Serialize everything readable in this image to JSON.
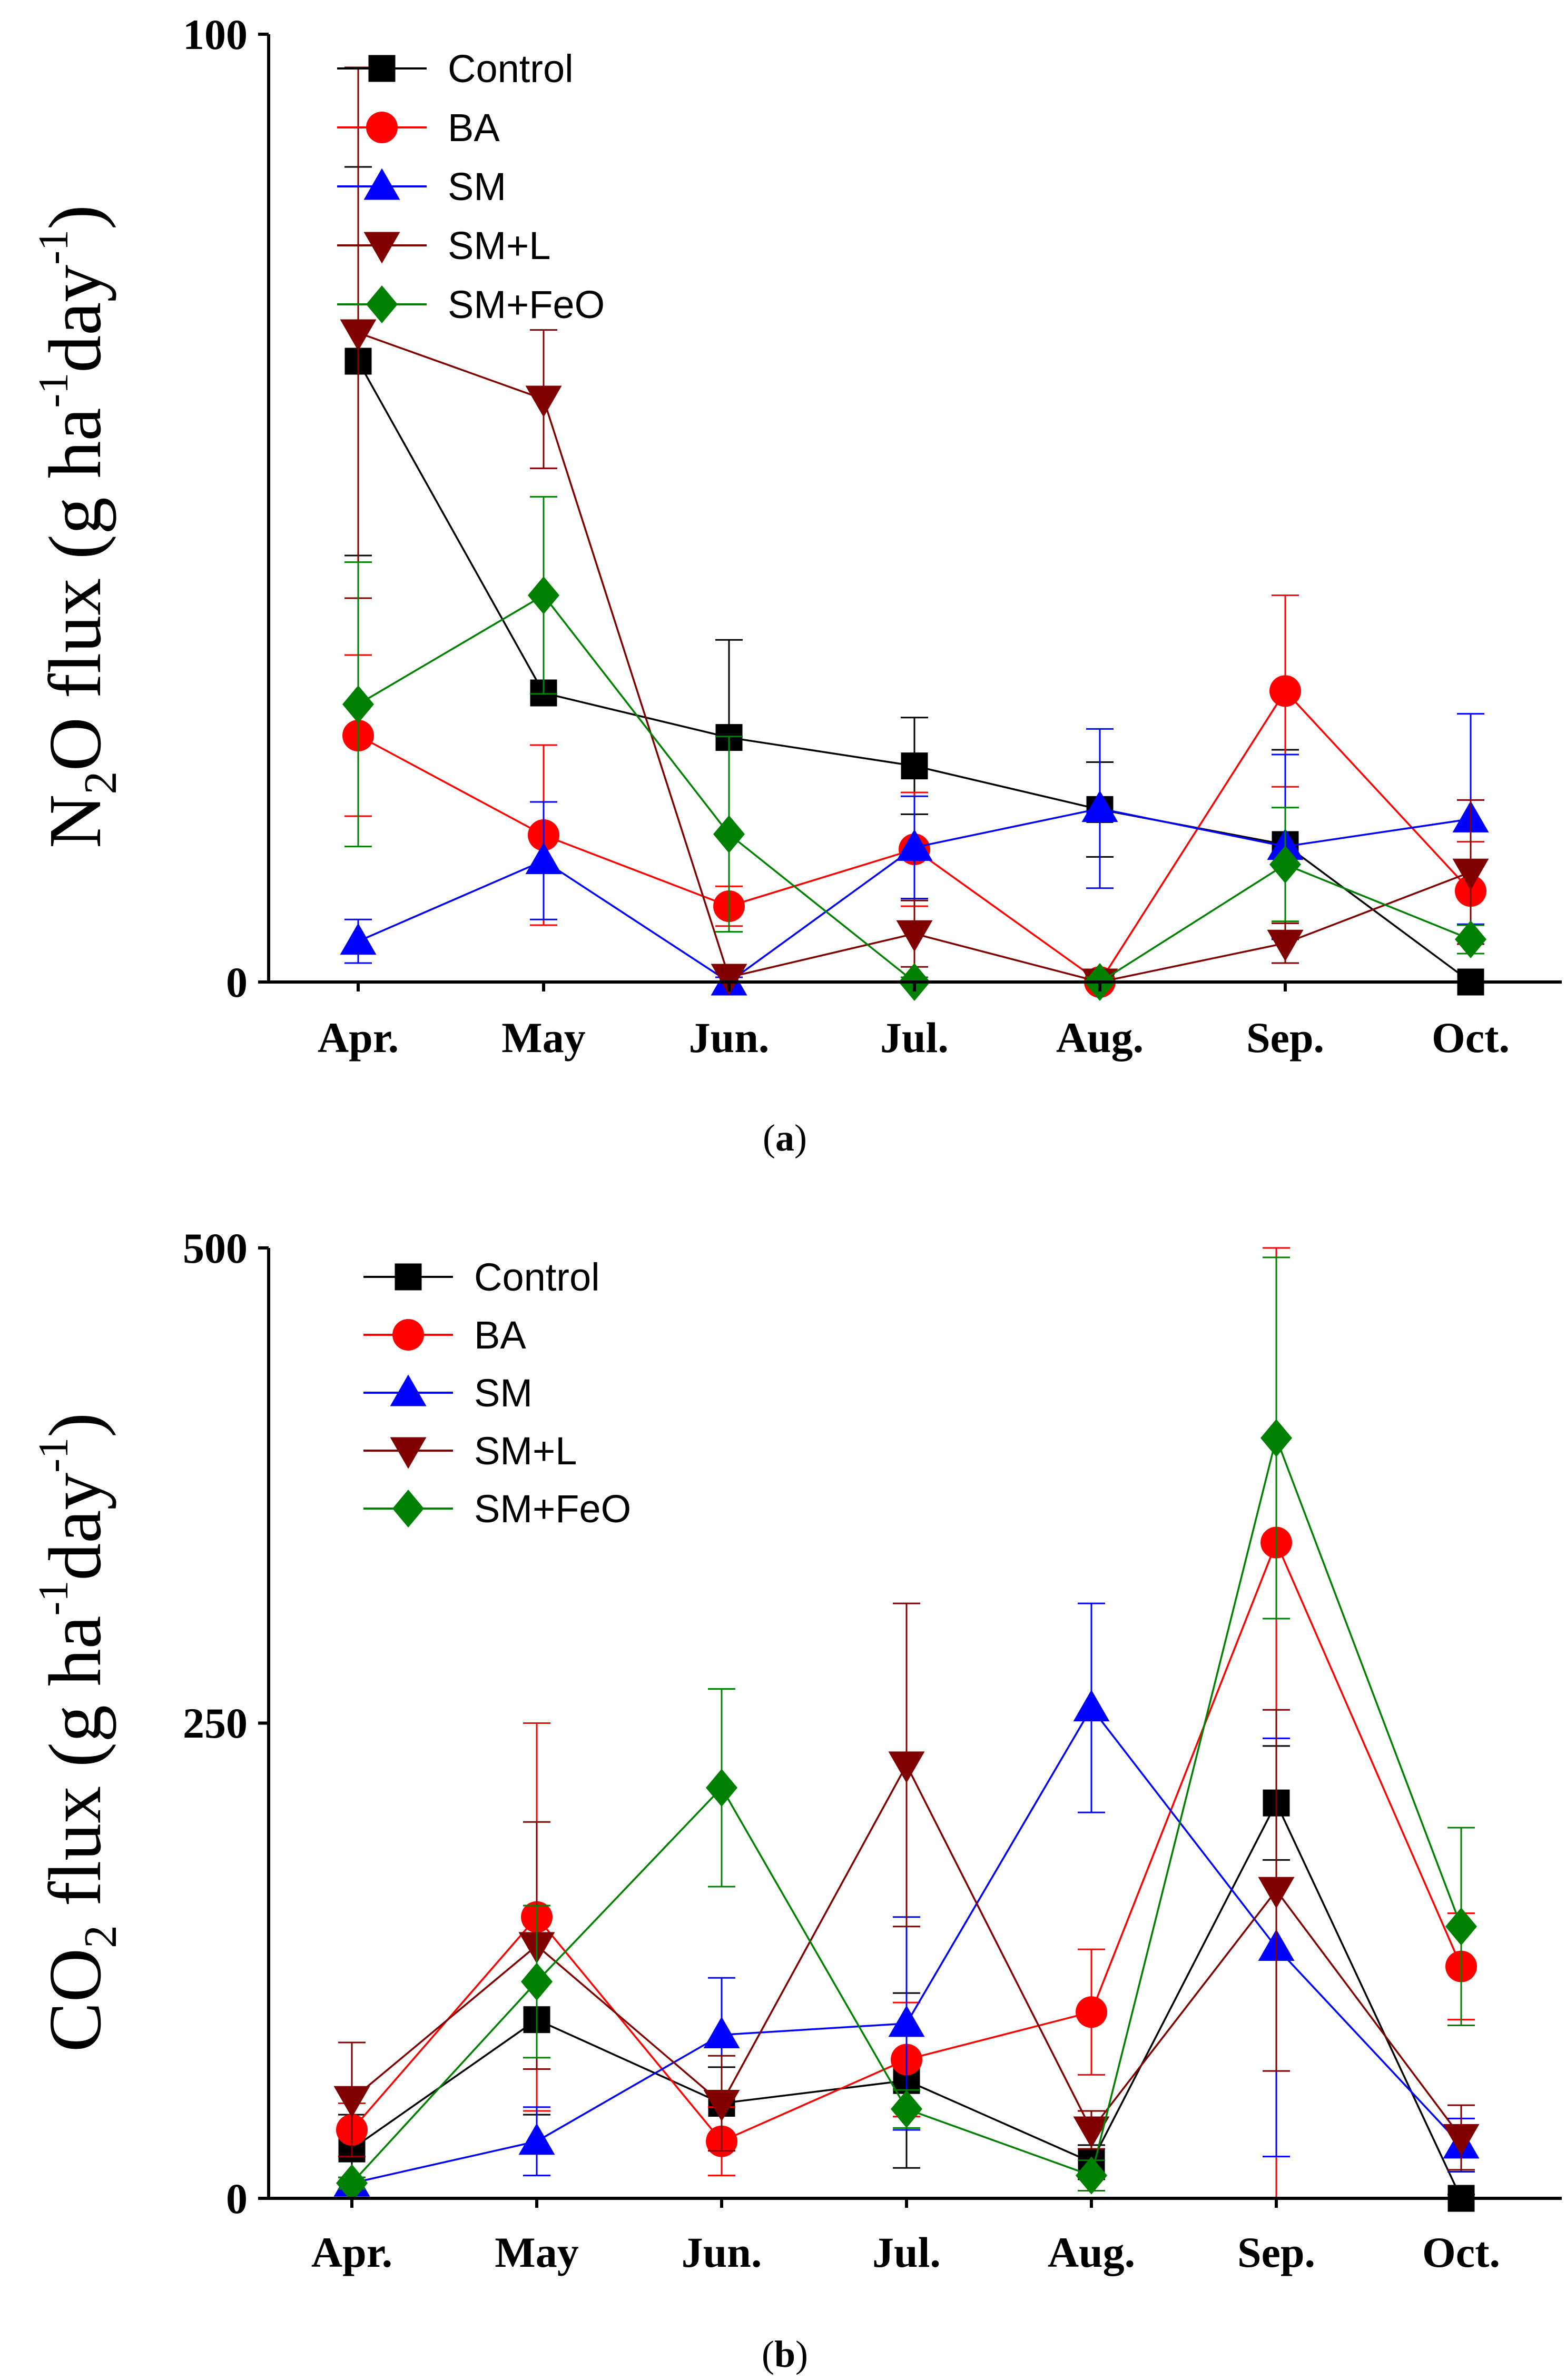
{
  "chart_data": [
    {
      "type": "line",
      "panel_label": {
        "open": "(",
        "letter": "a",
        "close": ")"
      },
      "ylabel": {
        "base": "N",
        "sub": "2",
        "mid": "O flux (g ha",
        "sup1": "-1",
        "mid2": "day",
        "sup2": "-1",
        "end": ")"
      },
      "categories": [
        "Apr.",
        "May",
        "Jun.",
        "Jul.",
        "Aug.",
        "Sep.",
        "Oct."
      ],
      "ylim": [
        0,
        100
      ],
      "yticks": [
        "0",
        "100"
      ],
      "legend_position": "top-left",
      "series": [
        {
          "name": "Control",
          "color": "#000000",
          "marker": "square",
          "values": [
            65.5,
            30.5,
            25.8,
            22.8,
            18.2,
            14.5,
            0
          ],
          "errors": [
            20.5,
            null,
            10.3,
            5.1,
            5.0,
            10.0,
            null
          ]
        },
        {
          "name": "BA",
          "color": "#ff0000",
          "marker": "circle",
          "values": [
            26,
            15.5,
            8,
            14,
            0,
            30.7,
            9.6
          ],
          "errors": [
            8.5,
            9.5,
            2.1,
            6.0,
            0.5,
            10.1,
            5.2
          ]
        },
        {
          "name": "SM",
          "color": "#0000ff",
          "marker": "triangle-up",
          "values": [
            4.3,
            12.8,
            0,
            14.2,
            18.3,
            14.3,
            17.2
          ],
          "errors": [
            2.3,
            6.2,
            0.5,
            5.4,
            8.4,
            9.7,
            11.1
          ]
        },
        {
          "name": "SM+L",
          "color": "#800000",
          "marker": "triangle-down",
          "values": [
            68.5,
            61.5,
            0.5,
            5.1,
            0,
            4.1,
            11.6
          ],
          "errors": [
            28.0,
            7.3,
            0.5,
            3.5,
            0.5,
            2.1,
            7.6
          ]
        },
        {
          "name": "SM+FeO",
          "color": "#008000",
          "marker": "diamond",
          "values": [
            29.3,
            40.8,
            15.6,
            0,
            0,
            12.4,
            4.5
          ],
          "errors": [
            15.0,
            10.4,
            10.3,
            0.5,
            0.5,
            6.0,
            1.5
          ]
        }
      ]
    },
    {
      "type": "line",
      "panel_label": {
        "open": "(",
        "letter": "b",
        "close": ")"
      },
      "ylabel": {
        "base": "CO",
        "sub": "2",
        "mid": " flux (g ha",
        "sup1": "-1",
        "mid2": "day",
        "sup2": "-1",
        "end": ")"
      },
      "categories": [
        "Apr.",
        "May",
        "Jun.",
        "Jul.",
        "Aug.",
        "Sep.",
        "Oct."
      ],
      "ylim": [
        0,
        500
      ],
      "yticks": [
        "0",
        "250",
        "500"
      ],
      "legend_position": "top-left",
      "series": [
        {
          "name": "Control",
          "color": "#000000",
          "marker": "square",
          "values": [
            26,
            94,
            50,
            62,
            19,
            208,
            0
          ],
          "errors": [
            18,
            50,
            19,
            46,
            9,
            30,
            2
          ]
        },
        {
          "name": "BA",
          "color": "#ff0000",
          "marker": "circle",
          "values": [
            36,
            148,
            30,
            73,
            98,
            345,
            122
          ],
          "errors": [
            14,
            102,
            18,
            30,
            33,
            350,
            28
          ]
        },
        {
          "name": "SM",
          "color": "#0000ff",
          "marker": "triangle-up",
          "values": [
            8,
            30,
            86,
            92,
            258,
            132,
            28
          ],
          "errors": [
            3,
            18,
            30,
            56,
            55,
            110,
            14
          ]
        },
        {
          "name": "SM+L",
          "color": "#800000",
          "marker": "triangle-down",
          "values": [
            52,
            133,
            50,
            228,
            36,
            162,
            32
          ],
          "errors": [
            30,
            65,
            25,
            85,
            10,
            95,
            17
          ]
        },
        {
          "name": "SM+FeO",
          "color": "#008000",
          "marker": "diamond",
          "values": [
            8,
            114,
            216,
            47,
            12,
            400,
            143
          ],
          "errors": [
            3,
            40,
            52,
            10,
            8,
            95,
            52
          ]
        }
      ]
    }
  ]
}
